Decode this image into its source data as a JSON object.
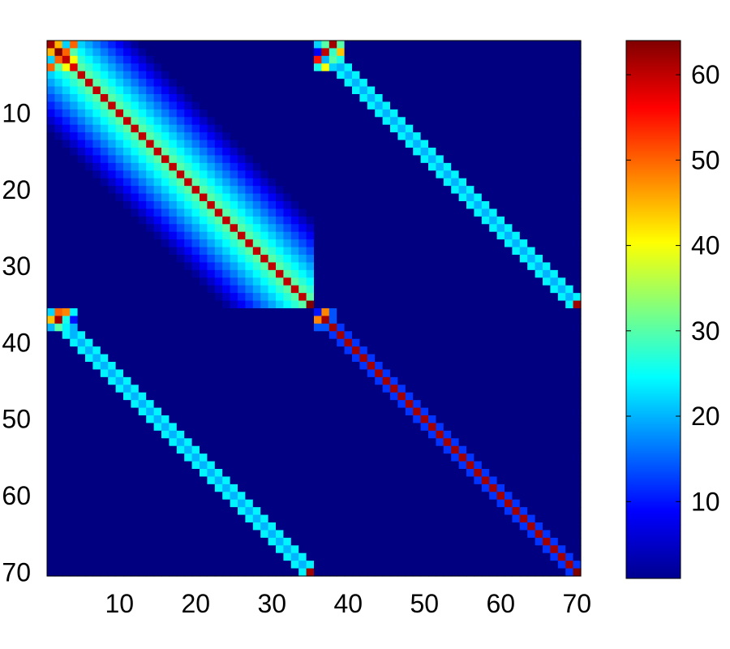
{
  "chart_data": {
    "type": "heatmap",
    "title": "",
    "xlabel": "",
    "ylabel": "",
    "matrix_size": 70,
    "block_size": 35,
    "colormap": "jet",
    "color_range": [
      1,
      64
    ],
    "axis_ranges": {
      "x": [
        0.5,
        70.5
      ],
      "y": [
        0.5,
        70.5
      ],
      "y_direction": "reversed"
    },
    "grid": false,
    "x_ticks": [
      10,
      20,
      30,
      40,
      50,
      60,
      70
    ],
    "x_tick_labels": [
      "10",
      "20",
      "30",
      "40",
      "50",
      "60",
      "70"
    ],
    "y_ticks": [
      10,
      20,
      30,
      40,
      50,
      60,
      70
    ],
    "y_tick_labels": [
      "10",
      "20",
      "30",
      "40",
      "50",
      "60",
      "70"
    ],
    "colorbar": {
      "position": "right",
      "ticks": [
        10,
        20,
        30,
        40,
        50,
        60
      ],
      "tick_labels": [
        "10",
        "20",
        "30",
        "40",
        "50",
        "60"
      ]
    },
    "background_value": 1,
    "blocks": [
      {
        "name": "rows 1-35, cols 1-35",
        "pattern": "main diagonal with smooth decaying off-diagonal band",
        "diagonal_value": 60,
        "near_diagonal_value": 30,
        "decay_per_cell": 0.8,
        "corner_values": [
          [
            62,
            45,
            22,
            50
          ],
          [
            45,
            64,
            50,
            30
          ],
          [
            22,
            50,
            60,
            40
          ],
          [
            50,
            30,
            40,
            58
          ]
        ],
        "end_corner_value": 64
      },
      {
        "name": "rows 1-35, cols 36-70",
        "pattern": "banded diagonal (width ~3)",
        "band_center_value": 20,
        "band_edge_value": 24,
        "corner_values": [
          [
            22,
            30,
            62,
            30
          ],
          [
            8,
            60,
            28,
            44
          ],
          [
            55,
            20,
            30,
            26
          ],
          [
            26,
            40,
            22,
            20
          ]
        ],
        "end_corner_value": 62
      },
      {
        "name": "rows 36-70, cols 1-35",
        "pattern": "banded diagonal (width ~3)",
        "band_center_value": 20,
        "band_edge_value": 24,
        "corner_values": [
          [
            22,
            50,
            48,
            24
          ],
          [
            44,
            62,
            26,
            10
          ],
          [
            20,
            30,
            24,
            20
          ]
        ],
        "end_corner_value": 62
      },
      {
        "name": "rows 36-70, cols 36-70",
        "pattern": "single strong diagonal",
        "diagonal_value": 62,
        "neighbor_value": 12,
        "corner_values": [
          [
            10,
            48,
            14
          ],
          [
            48,
            62,
            14
          ],
          [
            14,
            14,
            62
          ]
        ],
        "end_corner_value": 64
      }
    ]
  }
}
